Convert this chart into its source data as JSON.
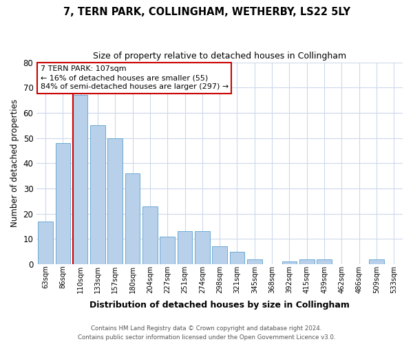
{
  "title": "7, TERN PARK, COLLINGHAM, WETHERBY, LS22 5LY",
  "subtitle": "Size of property relative to detached houses in Collingham",
  "xlabel": "Distribution of detached houses by size in Collingham",
  "ylabel": "Number of detached properties",
  "categories": [
    "63sqm",
    "86sqm",
    "110sqm",
    "133sqm",
    "157sqm",
    "180sqm",
    "204sqm",
    "227sqm",
    "251sqm",
    "274sqm",
    "298sqm",
    "321sqm",
    "345sqm",
    "368sqm",
    "392sqm",
    "415sqm",
    "439sqm",
    "462sqm",
    "486sqm",
    "509sqm",
    "533sqm"
  ],
  "values": [
    17,
    48,
    67,
    55,
    50,
    36,
    23,
    11,
    13,
    13,
    7,
    5,
    2,
    0,
    1,
    2,
    2,
    0,
    0,
    2,
    0
  ],
  "bar_color": "#b8d0ea",
  "bar_edge_color": "#6aaad4",
  "marker_bin": 2,
  "marker_color": "#cc0000",
  "ylim": [
    0,
    80
  ],
  "yticks": [
    0,
    10,
    20,
    30,
    40,
    50,
    60,
    70,
    80
  ],
  "annotation_text": "7 TERN PARK: 107sqm\n← 16% of detached houses are smaller (55)\n84% of semi-detached houses are larger (297) →",
  "annotation_box_color": "#ffffff",
  "annotation_box_edgecolor": "#cc0000",
  "footer_line1": "Contains HM Land Registry data © Crown copyright and database right 2024.",
  "footer_line2": "Contains public sector information licensed under the Open Government Licence v3.0.",
  "background_color": "#ffffff",
  "grid_color": "#ccd8ec"
}
